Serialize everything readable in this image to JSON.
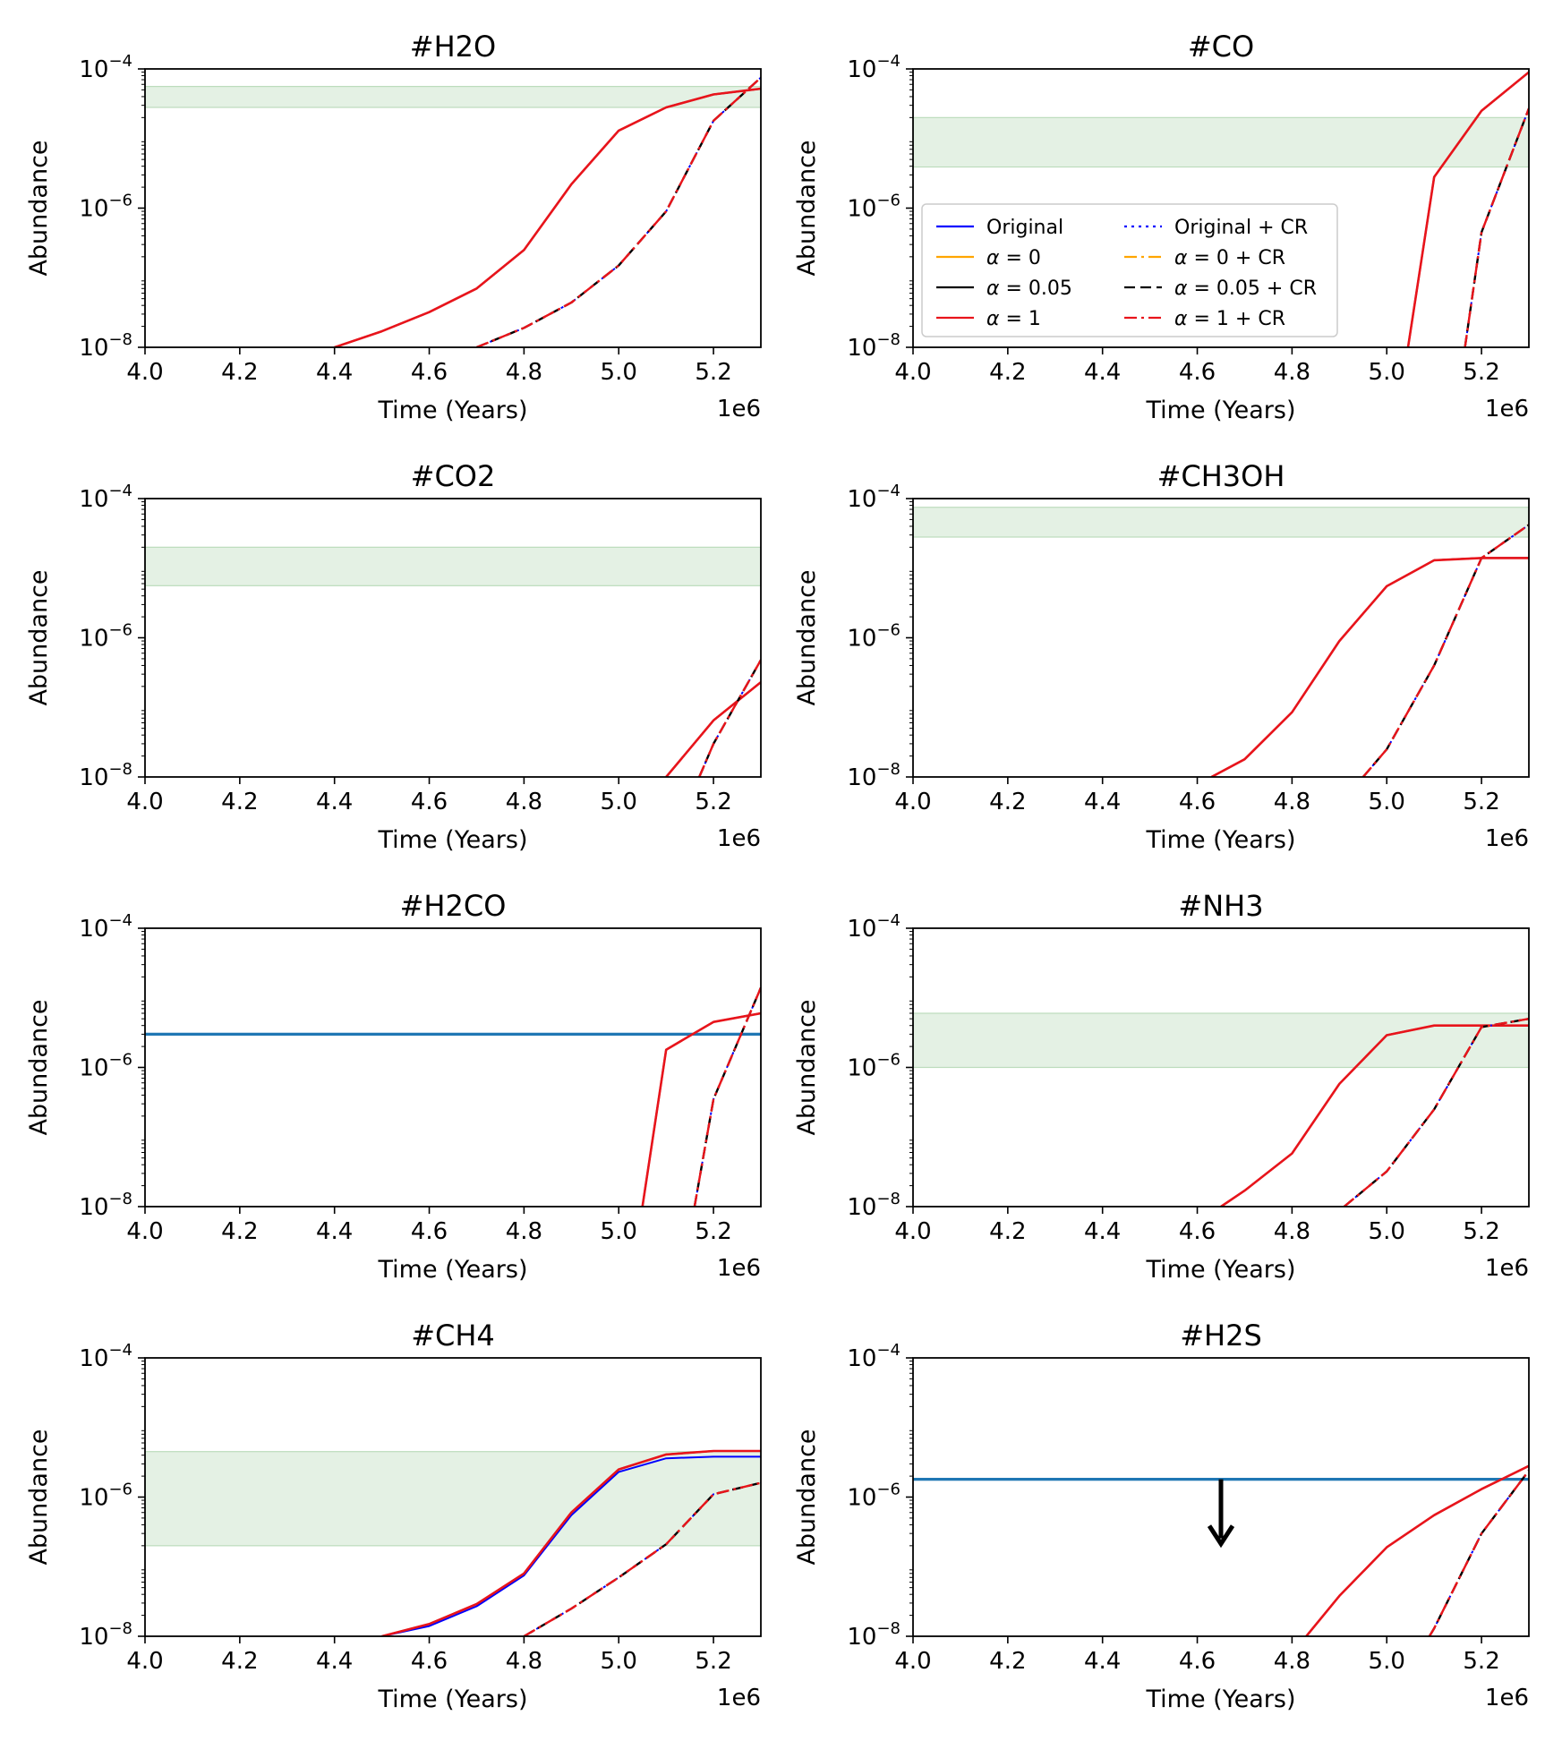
{
  "shared": {
    "xlabel": "Time (Years)",
    "ylabel": "Abundance",
    "x_offset_label": "1e6",
    "xlim": [
      4.0,
      5.3
    ],
    "ylim_log10": [
      -8,
      -4
    ],
    "xticks": [
      "4.0",
      "4.2",
      "4.4",
      "4.6",
      "4.8",
      "5.0",
      "5.2"
    ],
    "ytick_exponents": [
      "-8",
      "-6",
      "-4"
    ],
    "ytick_base": "10"
  },
  "legend": {
    "entries": [
      {
        "label": "Original",
        "math_prefix": "",
        "math_value": "",
        "suffix": "",
        "color": "#0000ff",
        "dash": "solid"
      },
      {
        "label": "",
        "math_prefix": "α",
        "math_value": " = 0",
        "suffix": "",
        "color": "#ffa500",
        "dash": "solid"
      },
      {
        "label": "",
        "math_prefix": "α",
        "math_value": " = 0.05",
        "suffix": "",
        "color": "#000000",
        "dash": "solid"
      },
      {
        "label": "",
        "math_prefix": "α",
        "math_value": " = 1",
        "suffix": "",
        "color": "#e8141b",
        "dash": "solid"
      },
      {
        "label": "Original + CR",
        "math_prefix": "",
        "math_value": "",
        "suffix": "",
        "color": "#0000ff",
        "dash": "dotted"
      },
      {
        "label": "",
        "math_prefix": "α",
        "math_value": " = 0",
        "suffix": " + CR",
        "color": "#ffa500",
        "dash": "dashdot"
      },
      {
        "label": "",
        "math_prefix": "α",
        "math_value": " = 0.05",
        "suffix": " + CR",
        "color": "#000000",
        "dash": "dashed"
      },
      {
        "label": "",
        "math_prefix": "α",
        "math_value": " = 1",
        "suffix": " + CR",
        "color": "#e8141b",
        "dash": "dashdot"
      }
    ]
  },
  "colors": {
    "band": "#d5ead5",
    "observed_line": "#1f77b4",
    "original": "#0000ff",
    "alpha0": "#ffa500",
    "alpha005": "#000000",
    "alpha1": "#e8141b"
  },
  "chart_data": [
    {
      "type": "line",
      "title": "#H2O",
      "xlabel": "Time (Years)",
      "ylabel": "Abundance",
      "band": [
        2.8e-05,
        5.6e-05
      ],
      "x": [
        4.4,
        4.5,
        4.6,
        4.7,
        4.8,
        4.9,
        5.0,
        5.1,
        5.2,
        5.3
      ],
      "series_nocr": [
        1e-08,
        1.7e-08,
        3.2e-08,
        7e-08,
        2.5e-07,
        2.2e-06,
        1.3e-05,
        2.8e-05,
        4.3e-05,
        5.2e-05
      ],
      "x_cr": [
        4.7,
        4.8,
        4.9,
        5.0,
        5.1,
        5.2,
        5.3
      ],
      "series_cr": [
        1e-08,
        1.9e-08,
        4.4e-08,
        1.5e-07,
        9e-07,
        1.8e-05,
        7.5e-05
      ]
    },
    {
      "type": "line",
      "title": "#CO",
      "xlabel": "Time (Years)",
      "ylabel": "Abundance",
      "band": [
        3.9e-06,
        2e-05
      ],
      "x": [
        5.045,
        5.1,
        5.2,
        5.3
      ],
      "series_nocr": [
        1e-08,
        2.8e-06,
        2.5e-05,
        9e-05
      ],
      "x_cr": [
        5.165,
        5.2,
        5.3
      ],
      "series_cr": [
        1e-08,
        4.5e-07,
        2.7e-05
      ]
    },
    {
      "type": "line",
      "title": "#CO2",
      "xlabel": "Time (Years)",
      "ylabel": "Abundance",
      "band": [
        5.6e-06,
        2e-05
      ],
      "x": [
        5.1,
        5.2,
        5.3
      ],
      "series_nocr": [
        1e-08,
        6.5e-08,
        2.3e-07
      ],
      "x_cr": [
        5.17,
        5.2,
        5.3
      ],
      "series_cr": [
        1e-08,
        3e-08,
        4.8e-07
      ]
    },
    {
      "type": "line",
      "title": "#CH3OH",
      "xlabel": "Time (Years)",
      "ylabel": "Abundance",
      "band": [
        2.8e-05,
        7.5e-05
      ],
      "x": [
        4.63,
        4.7,
        4.8,
        4.9,
        5.0,
        5.1,
        5.2,
        5.3
      ],
      "series_nocr": [
        1e-08,
        1.8e-08,
        8.5e-08,
        9e-07,
        5.5e-06,
        1.3e-05,
        1.4e-05,
        1.4e-05
      ],
      "x_cr": [
        4.95,
        5.0,
        5.1,
        5.2,
        5.3
      ],
      "series_cr": [
        1e-08,
        2.5e-08,
        4e-07,
        1.4e-05,
        4.2e-05
      ]
    },
    {
      "type": "line",
      "title": "#H2CO",
      "xlabel": "Time (Years)",
      "ylabel": "Abundance",
      "observed": 3e-06,
      "x": [
        5.05,
        5.1,
        5.2,
        5.3
      ],
      "series_nocr": [
        1e-08,
        1.8e-06,
        4.5e-06,
        6e-06
      ],
      "x_cr": [
        5.16,
        5.2,
        5.3
      ],
      "series_cr": [
        1e-08,
        3.5e-07,
        1.4e-05
      ]
    },
    {
      "type": "line",
      "title": "#NH3",
      "xlabel": "Time (Years)",
      "ylabel": "Abundance",
      "band": [
        1e-06,
        6e-06
      ],
      "x": [
        4.65,
        4.7,
        4.8,
        4.9,
        5.0,
        5.1,
        5.2,
        5.3
      ],
      "series_nocr": [
        1e-08,
        1.7e-08,
        5.8e-08,
        5.8e-07,
        2.9e-06,
        4e-06,
        4e-06,
        4e-06
      ],
      "x_cr": [
        4.91,
        5.0,
        5.1,
        5.2,
        5.3
      ],
      "series_cr": [
        1e-08,
        3.2e-08,
        2.5e-07,
        3.8e-06,
        5e-06
      ]
    },
    {
      "type": "line",
      "title": "#CH4",
      "xlabel": "Time (Years)",
      "ylabel": "Abundance",
      "band": [
        2e-07,
        4.5e-06
      ],
      "x": [
        4.5,
        4.6,
        4.7,
        4.8,
        4.9,
        5.0,
        5.1,
        5.2,
        5.3
      ],
      "series_nocr": [
        1e-08,
        1.5e-08,
        2.9e-08,
        8e-08,
        6e-07,
        2.5e-06,
        4.1e-06,
        4.6e-06,
        4.6e-06
      ],
      "series_original": [
        1e-08,
        1.4e-08,
        2.7e-08,
        7.5e-08,
        5.5e-07,
        2.3e-06,
        3.6e-06,
        3.8e-06,
        3.8e-06
      ],
      "x_cr": [
        4.8,
        4.9,
        5.0,
        5.1,
        5.2,
        5.3
      ],
      "series_cr": [
        1e-08,
        2.5e-08,
        7e-08,
        2.1e-07,
        1.1e-06,
        1.6e-06
      ]
    },
    {
      "type": "line",
      "title": "#H2S",
      "xlabel": "Time (Years)",
      "ylabel": "Abundance",
      "observed": 1.8e-06,
      "upper_limit_at": 4.65,
      "x": [
        4.83,
        4.9,
        5.0,
        5.1,
        5.2,
        5.3
      ],
      "series_nocr": [
        1e-08,
        3.8e-08,
        1.9e-07,
        5.5e-07,
        1.3e-06,
        2.8e-06
      ],
      "x_cr": [
        5.09,
        5.1,
        5.2,
        5.3
      ],
      "series_cr": [
        1e-08,
        1.3e-08,
        3e-07,
        2.4e-06
      ]
    }
  ]
}
